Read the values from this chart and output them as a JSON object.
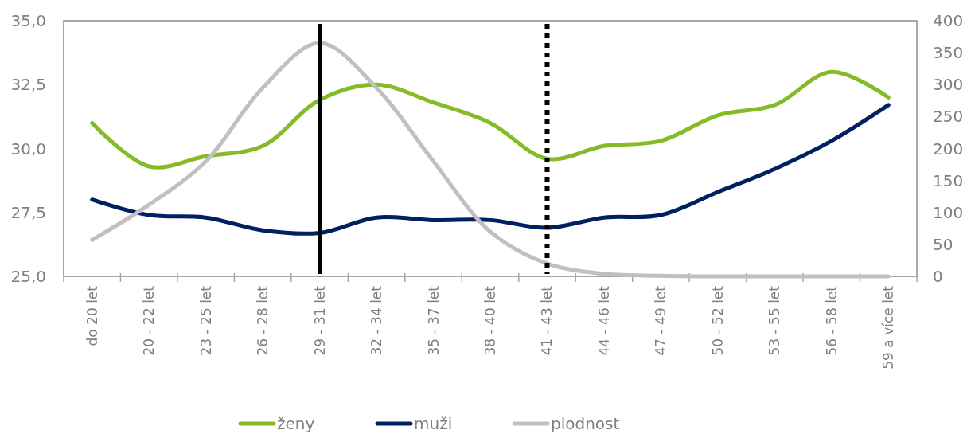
{
  "chart_data": {
    "type": "line",
    "categories": [
      "do 20 let",
      "20 - 22 let",
      "23 - 25 let",
      "26 - 28 let",
      "29 - 31 let",
      "32 - 34 let",
      "35 - 37 let",
      "38 - 40 let",
      "41 - 43 let",
      "44 - 46 let",
      "47 - 49 let",
      "50 - 52 let",
      "53 - 55 let",
      "56 - 58 let",
      "59 a více let"
    ],
    "series": [
      {
        "name": "ženy",
        "color": "#84bb26",
        "values": [
          31.0,
          29.3,
          29.7,
          30.1,
          31.9,
          32.5,
          31.8,
          31.0,
          29.6,
          30.1,
          30.3,
          31.3,
          31.7,
          33.0,
          32.0
        ]
      },
      {
        "name": "muži",
        "color": "#002060",
        "values": [
          28.0,
          27.4,
          27.3,
          26.8,
          26.7,
          27.3,
          27.2,
          27.2,
          26.9,
          27.3,
          27.4,
          28.3,
          29.2,
          30.3,
          31.7
        ]
      },
      {
        "name": "plodnost",
        "color": "#c0c0c0",
        "axis": "y2",
        "values": [
          57,
          112,
          180,
          295,
          365,
          295,
          180,
          70,
          20,
          4,
          1,
          0,
          0,
          0,
          0
        ]
      }
    ],
    "ylim": [
      25,
      35
    ],
    "yticks": [
      {
        "value": 25,
        "label": "25,0"
      },
      {
        "value": 27.5,
        "label": "27,5"
      },
      {
        "value": 30,
        "label": "30,0"
      },
      {
        "value": 32.5,
        "label": "32,5"
      },
      {
        "value": 35,
        "label": "35,0"
      }
    ],
    "y2lim": [
      0,
      400
    ],
    "y2ticks": [
      0,
      50,
      100,
      150,
      200,
      250,
      300,
      350,
      400
    ],
    "ref_lines": [
      {
        "axis": "x",
        "value": "29 - 31 let",
        "color": "#000000",
        "line_style": "solid"
      },
      {
        "axis": "x",
        "value": "41 - 43 let",
        "color": "#000000",
        "line_style": "dotted"
      }
    ],
    "legend": "bottom"
  }
}
